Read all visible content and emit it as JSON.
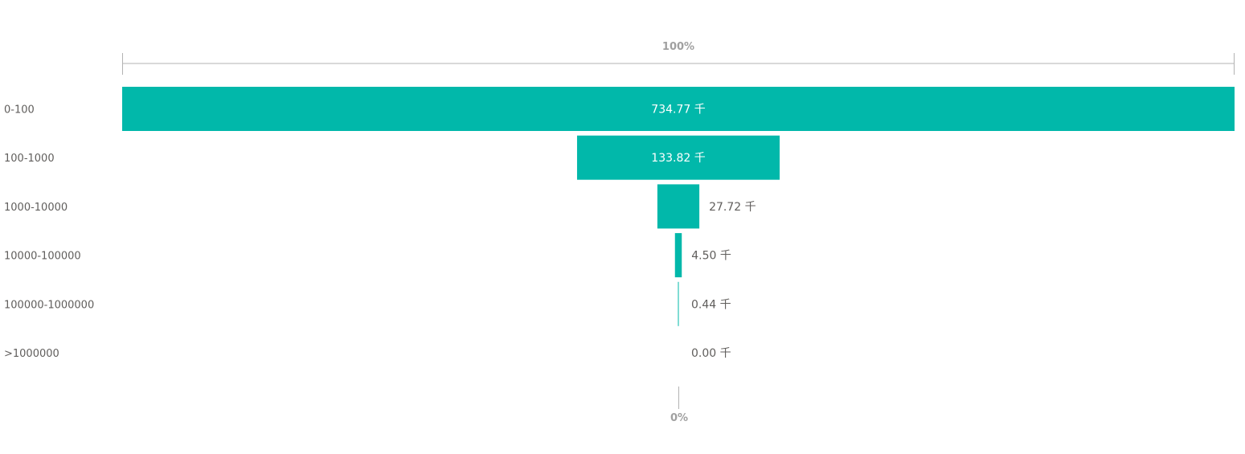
{
  "chart_data": {
    "type": "funnel",
    "unit": "千",
    "color": "#01B8AA",
    "categories": [
      "0-100",
      "100-1000",
      "1000-10000",
      "10000-100000",
      "100000-1000000",
      ">1000000"
    ],
    "values": [
      734.77,
      133.82,
      27.72,
      4.5,
      0.44,
      0.0
    ],
    "value_labels": [
      "734.77 千",
      "133.82 千",
      "27.72 千",
      "4.50 千",
      "0.44 千",
      "0.00 千"
    ],
    "top_axis_label": "100%",
    "bottom_axis_label": "0%"
  }
}
